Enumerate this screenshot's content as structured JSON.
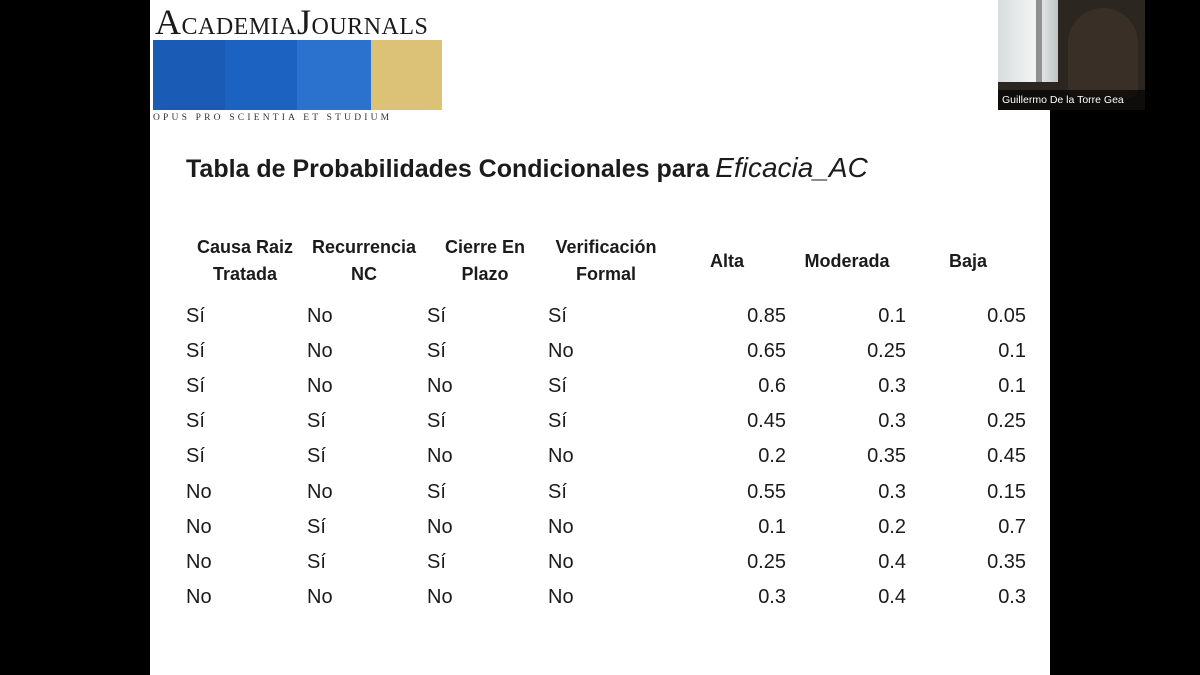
{
  "logo": {
    "title_first": "A",
    "title_rest1": "cademia",
    "title_J": "J",
    "title_rest2": "ournals",
    "motto": "OPUS PRO SCIENTIA ET STUDIUM"
  },
  "colors": {
    "logo_blue_1": "#1a5bb6",
    "logo_blue_2": "#1c62c0",
    "logo_blue_3": "#2a72cd",
    "logo_gold": "#dcc276"
  },
  "slide": {
    "title": "Tabla de Probabilidades Condicionales para",
    "title_variable": "Eficacia_AC"
  },
  "table": {
    "headers": [
      {
        "line1": "Causa Raiz",
        "line2": "Tratada"
      },
      {
        "line1": "Recurrencia",
        "line2": "NC"
      },
      {
        "line1": "Cierre En",
        "line2": "Plazo"
      },
      {
        "line1": "Verificación",
        "line2": "Formal"
      },
      {
        "line1": "Alta",
        "line2": ""
      },
      {
        "line1": "Moderada",
        "line2": ""
      },
      {
        "line1": "Baja",
        "line2": ""
      }
    ],
    "rows": [
      [
        "Sí",
        "No",
        "Sí",
        "Sí",
        "0.85",
        "0.1",
        "0.05"
      ],
      [
        "Sí",
        "No",
        "Sí",
        "No",
        "0.65",
        "0.25",
        "0.1"
      ],
      [
        "Sí",
        "No",
        "No",
        "Sí",
        "0.6",
        "0.3",
        "0.1"
      ],
      [
        "Sí",
        "Sí",
        "Sí",
        "Sí",
        "0.45",
        "0.3",
        "0.25"
      ],
      [
        "Sí",
        "Sí",
        "No",
        "No",
        "0.2",
        "0.35",
        "0.45"
      ],
      [
        "No",
        "No",
        "Sí",
        "Sí",
        "0.55",
        "0.3",
        "0.15"
      ],
      [
        "No",
        "Sí",
        "No",
        "No",
        "0.1",
        "0.2",
        "0.7"
      ],
      [
        "No",
        "Sí",
        "Sí",
        "No",
        "0.25",
        "0.4",
        "0.35"
      ],
      [
        "No",
        "No",
        "No",
        "No",
        "0.3",
        "0.4",
        "0.3"
      ]
    ]
  },
  "webcam": {
    "participant_name": "Guillermo De la Torre Gea"
  }
}
